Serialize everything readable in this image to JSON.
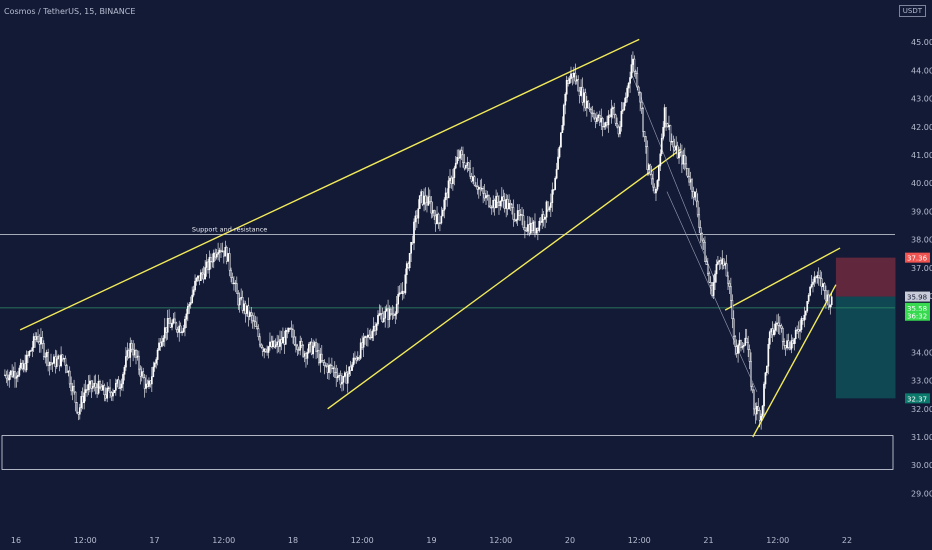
{
  "header": {
    "symbol": "Cosmos / TetherUS, 15, BINANCE",
    "currency": "USDT"
  },
  "colors": {
    "background": "#131a36",
    "candle": "#ffffff",
    "trendline": "#f2ea58",
    "stop_zone": "#6e2a3e",
    "target_zone": "#0f4e57",
    "stop_badge": "#f05350",
    "entry_badge": "#37d94f",
    "target_badge": "#0b7a6c"
  },
  "chart_data": {
    "type": "candlestick",
    "title": "",
    "xlabel": "",
    "ylabel": "",
    "ylim": [
      28.2,
      45.9
    ],
    "xlim": [
      16.0,
      22.35
    ],
    "grid": false,
    "y_ticks": [
      "29.00",
      "30.00",
      "31.00",
      "32.00",
      "33.00",
      "34.00",
      "36.00",
      "37.00",
      "38.00",
      "39.00",
      "40.00",
      "41.00",
      "42.00",
      "43.00",
      "44.00",
      "45.00"
    ],
    "x_ticks": [
      {
        "label": "16",
        "x": 16.0
      },
      {
        "label": "12:00",
        "x": 16.5
      },
      {
        "label": "17",
        "x": 17.0
      },
      {
        "label": "12:00",
        "x": 17.5
      },
      {
        "label": "18",
        "x": 18.0
      },
      {
        "label": "12:00",
        "x": 18.5
      },
      {
        "label": "19",
        "x": 19.0
      },
      {
        "label": "12:00",
        "x": 19.5
      },
      {
        "label": "20",
        "x": 20.0
      },
      {
        "label": "12:00",
        "x": 20.5
      },
      {
        "label": "21",
        "x": 21.0
      },
      {
        "label": "12:00",
        "x": 21.5
      },
      {
        "label": "22",
        "x": 22.0
      }
    ],
    "price_path": [
      [
        15.92,
        33.2
      ],
      [
        16.05,
        33.4
      ],
      [
        16.15,
        34.6
      ],
      [
        16.25,
        33.6
      ],
      [
        16.35,
        33.8
      ],
      [
        16.45,
        31.9
      ],
      [
        16.5,
        32.7
      ],
      [
        16.58,
        32.8
      ],
      [
        16.65,
        32.5
      ],
      [
        16.75,
        32.9
      ],
      [
        16.83,
        34.3
      ],
      [
        16.95,
        32.6
      ],
      [
        17.05,
        34.6
      ],
      [
        17.1,
        35.0
      ],
      [
        17.2,
        34.9
      ],
      [
        17.3,
        36.5
      ],
      [
        17.38,
        37.0
      ],
      [
        17.46,
        37.8
      ],
      [
        17.52,
        37.5
      ],
      [
        17.6,
        35.9
      ],
      [
        17.7,
        35.2
      ],
      [
        17.78,
        34.2
      ],
      [
        17.88,
        34.2
      ],
      [
        17.98,
        34.7
      ],
      [
        18.08,
        34.0
      ],
      [
        18.15,
        34.2
      ],
      [
        18.22,
        33.5
      ],
      [
        18.3,
        33.4
      ],
      [
        18.36,
        32.9
      ],
      [
        18.45,
        33.8
      ],
      [
        18.55,
        34.6
      ],
      [
        18.62,
        35.3
      ],
      [
        18.72,
        35.4
      ],
      [
        18.8,
        36.3
      ],
      [
        18.87,
        38.3
      ],
      [
        18.92,
        39.5
      ],
      [
        18.98,
        39.3
      ],
      [
        19.05,
        38.6
      ],
      [
        19.12,
        39.8
      ],
      [
        19.2,
        41.0
      ],
      [
        19.28,
        40.4
      ],
      [
        19.38,
        39.5
      ],
      [
        19.45,
        39.3
      ],
      [
        19.52,
        39.4
      ],
      [
        19.6,
        38.9
      ],
      [
        19.68,
        38.5
      ],
      [
        19.75,
        38.4
      ],
      [
        19.82,
        39.0
      ],
      [
        19.88,
        39.6
      ],
      [
        19.92,
        40.9
      ],
      [
        19.97,
        43.5
      ],
      [
        20.02,
        43.9
      ],
      [
        20.1,
        43.0
      ],
      [
        20.18,
        42.4
      ],
      [
        20.25,
        42.0
      ],
      [
        20.3,
        42.7
      ],
      [
        20.35,
        41.8
      ],
      [
        20.4,
        43.0
      ],
      [
        20.45,
        44.4
      ],
      [
        20.5,
        43.3
      ],
      [
        20.56,
        40.6
      ],
      [
        20.62,
        39.5
      ],
      [
        20.68,
        42.6
      ],
      [
        20.75,
        41.2
      ],
      [
        20.82,
        40.8
      ],
      [
        20.9,
        39.6
      ],
      [
        20.96,
        37.8
      ],
      [
        21.02,
        36.1
      ],
      [
        21.08,
        37.5
      ],
      [
        21.14,
        36.6
      ],
      [
        21.2,
        34.0
      ],
      [
        21.27,
        34.6
      ],
      [
        21.33,
        32.0
      ],
      [
        21.38,
        31.8
      ],
      [
        21.44,
        34.5
      ],
      [
        21.5,
        35.1
      ],
      [
        21.56,
        34.3
      ],
      [
        21.62,
        34.4
      ],
      [
        21.7,
        35.6
      ],
      [
        21.76,
        36.7
      ],
      [
        21.82,
        36.4
      ],
      [
        21.86,
        35.9
      ],
      [
        21.9,
        35.7
      ]
    ]
  },
  "annotations": {
    "support_label": "Support and resistance"
  },
  "price_badges": [
    {
      "text": "37.36",
      "color": "#f05350",
      "y": 37.36
    },
    {
      "text": "35.98",
      "color": "#c9ccd8",
      "y": 35.98
    },
    {
      "text": "35.58",
      "color": "#37d94f",
      "y": 35.58
    },
    {
      "text": "36:32",
      "color": "#37d94f",
      "y": 35.3
    },
    {
      "text": "32.37",
      "color": "#0b7a6c",
      "y": 32.37
    }
  ]
}
